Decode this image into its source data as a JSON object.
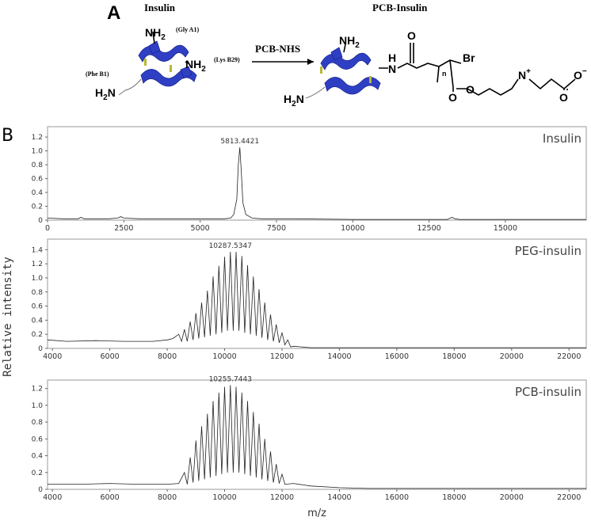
{
  "scheme": {
    "label": "A",
    "left_title": "Insulin",
    "right_title": "PCB-Insulin",
    "reagent": "PCB-NHS",
    "labels": [
      "NH",
      "2",
      "(Gly A1)",
      "NH",
      "2",
      "(Phe B1)",
      "H",
      "2",
      "N",
      "(Lys B29)",
      "NH",
      "2",
      "H",
      "2",
      "N",
      "H",
      "N",
      "O",
      "Br",
      "n",
      "O",
      "O",
      "N",
      "+",
      "O",
      "O",
      "−"
    ]
  },
  "figure": {
    "label": "B",
    "y_label": "Relative intensity",
    "x_label": "m/z"
  },
  "chart_data": [
    {
      "type": "line",
      "title": "Insulin",
      "peak_label": "5813.4421",
      "color": "#222222",
      "x": [
        0,
        500,
        1000,
        1100,
        1200,
        2000,
        2300,
        2400,
        2500,
        3000,
        4000,
        5000,
        5800,
        6000,
        6100,
        6200,
        6250,
        6300,
        6350,
        6400,
        6500,
        6700,
        7000,
        8000,
        10000,
        12000,
        13100,
        13250,
        13350,
        13500,
        14000,
        16000,
        17650
      ],
      "values": [
        0.03,
        0.02,
        0.02,
        0.04,
        0.02,
        0.02,
        0.03,
        0.05,
        0.03,
        0.02,
        0.02,
        0.02,
        0.02,
        0.03,
        0.08,
        0.3,
        0.8,
        1.05,
        0.7,
        0.25,
        0.08,
        0.03,
        0.02,
        0.02,
        0.01,
        0.01,
        0.01,
        0.04,
        0.02,
        0.01,
        0.01,
        0.01,
        0.01
      ],
      "xlim": [
        0,
        17650
      ],
      "ylim": [
        0,
        1.35
      ],
      "xticks": [
        0,
        2500,
        5000,
        7500,
        10000,
        12500,
        15000
      ],
      "yticks": [
        0,
        0.2,
        0.4,
        0.6,
        0.8,
        {
          "value": 1,
          "label": "1.0"
        },
        1.2
      ]
    },
    {
      "type": "line",
      "title": "PEG-insulin",
      "peak_label": "10287.5347",
      "color": "#222222",
      "x": [
        3830,
        4500,
        5500,
        6500,
        7500,
        8000,
        8200,
        8400,
        8500,
        8600,
        8700,
        8800,
        8900,
        9000,
        9100,
        9200,
        9300,
        9400,
        9500,
        9600,
        9700,
        9800,
        9900,
        10000,
        10100,
        10200,
        10300,
        10400,
        10500,
        10600,
        10700,
        10800,
        10900,
        11000,
        11100,
        11200,
        11300,
        11400,
        11500,
        11600,
        11700,
        11800,
        11900,
        12000,
        12100,
        12200,
        12300,
        12400,
        13000,
        15000,
        22600
      ],
      "values": [
        0.12,
        0.1,
        0.11,
        0.1,
        0.1,
        0.12,
        0.14,
        0.2,
        0.1,
        0.27,
        0.1,
        0.38,
        0.12,
        0.5,
        0.14,
        0.65,
        0.16,
        0.82,
        0.18,
        1.02,
        0.2,
        1.17,
        0.22,
        1.3,
        0.25,
        1.37,
        0.25,
        1.37,
        0.25,
        1.31,
        0.22,
        1.18,
        0.2,
        1.02,
        0.18,
        0.84,
        0.15,
        0.65,
        0.12,
        0.48,
        0.1,
        0.34,
        0.08,
        0.22,
        0.05,
        0.12,
        0.02,
        0.03,
        0.01,
        0.01,
        0.01
      ],
      "xlim": [
        3830,
        22600
      ],
      "ylim": [
        0,
        1.55
      ],
      "xticks": [
        4000,
        6000,
        8000,
        10000,
        12000,
        14000,
        16000,
        18000,
        20000,
        22000
      ],
      "yticks": [
        0,
        0.2,
        0.4,
        0.6,
        0.8,
        {
          "value": 1,
          "label": "1.0"
        },
        1.2,
        1.4
      ]
    },
    {
      "type": "line",
      "title": "PCB-insulin",
      "peak_label": "10255.7443",
      "color": "#222222",
      "x": [
        3830,
        5000,
        6000,
        7000,
        8000,
        8400,
        8600,
        8700,
        8800,
        8900,
        9000,
        9100,
        9200,
        9300,
        9400,
        9500,
        9600,
        9700,
        9800,
        9900,
        10000,
        10100,
        10200,
        10300,
        10400,
        10500,
        10600,
        10700,
        10800,
        10900,
        11000,
        11100,
        11200,
        11300,
        11400,
        11500,
        11600,
        11700,
        11800,
        11900,
        12000,
        12100,
        12400,
        13000,
        14000,
        15000,
        22600
      ],
      "values": [
        0.06,
        0.06,
        0.07,
        0.06,
        0.06,
        0.07,
        0.2,
        0.06,
        0.38,
        0.08,
        0.58,
        0.1,
        0.75,
        0.12,
        0.9,
        0.14,
        1.05,
        0.16,
        1.15,
        0.18,
        1.22,
        0.2,
        1.24,
        0.2,
        1.22,
        0.2,
        1.15,
        0.18,
        1.05,
        0.16,
        0.92,
        0.14,
        0.78,
        0.12,
        0.6,
        0.1,
        0.45,
        0.08,
        0.3,
        0.07,
        0.18,
        0.06,
        0.07,
        0.04,
        0.02,
        0.01,
        0.01
      ],
      "xlim": [
        3830,
        22600
      ],
      "ylim": [
        0,
        1.3
      ],
      "xticks": [
        4000,
        6000,
        8000,
        10000,
        12000,
        14000,
        16000,
        18000,
        20000,
        22000
      ],
      "yticks": [
        0,
        0.2,
        0.4,
        0.6,
        0.8,
        {
          "value": 1,
          "label": "1.0"
        },
        1.2
      ]
    }
  ]
}
